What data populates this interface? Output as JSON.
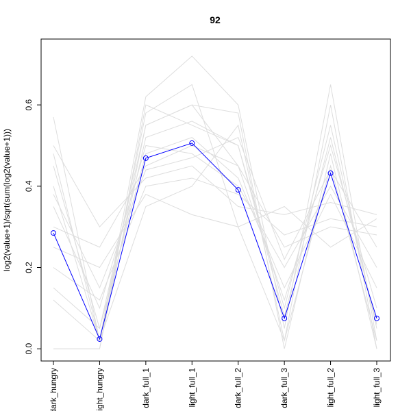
{
  "chart_data": {
    "type": "line",
    "title": "92",
    "ylabel": "log2(value+1)/sqrt(sum(log2(value+1)))",
    "categories": [
      "dark_hungry",
      "light_hungry",
      "dark_full_1",
      "light_full_1",
      "dark_full_2",
      "dark_full_3",
      "light_full_2",
      "light_full_3"
    ],
    "ylim": [
      -0.03,
      0.762
    ],
    "yticks": [
      {
        "value": 0,
        "label": "0.0"
      },
      {
        "value": 0.2,
        "label": "0.2"
      },
      {
        "value": 0.4,
        "label": "0.4"
      },
      {
        "value": 0.6,
        "label": "0.6"
      }
    ],
    "series": [
      {
        "color": "#dddddd",
        "values": [
          0.57,
          0.02,
          0.62,
          0.72,
          0.6,
          0.05,
          0.65,
          0.02
        ]
      },
      {
        "color": "#dddddd",
        "values": [
          0.5,
          0.3,
          0.42,
          0.45,
          0.35,
          0.33,
          0.36,
          0.33
        ]
      },
      {
        "color": "#dddddd",
        "values": [
          0.0,
          0.0,
          0.6,
          0.55,
          0.5,
          0.1,
          0.55,
          0.05
        ]
      },
      {
        "color": "#dddddd",
        "values": [
          0.45,
          0.05,
          0.55,
          0.6,
          0.45,
          0.12,
          0.5,
          0.1
        ]
      },
      {
        "color": "#dddddd",
        "values": [
          0.35,
          0.1,
          0.5,
          0.48,
          0.4,
          0.2,
          0.4,
          0.2
        ]
      },
      {
        "color": "#dddddd",
        "values": [
          0.2,
          0.12,
          0.4,
          0.42,
          0.38,
          0.28,
          0.32,
          0.3
        ]
      },
      {
        "color": "#dddddd",
        "values": [
          0.12,
          0.02,
          0.35,
          0.4,
          0.55,
          0.02,
          0.6,
          0.0
        ]
      },
      {
        "color": "#dddddd",
        "values": [
          0.4,
          0.02,
          0.58,
          0.65,
          0.3,
          0.02,
          0.45,
          0.02
        ]
      },
      {
        "color": "#dddddd",
        "values": [
          0.3,
          0.25,
          0.45,
          0.5,
          0.45,
          0.25,
          0.3,
          0.28
        ]
      },
      {
        "color": "#dddddd",
        "values": [
          0.25,
          0.2,
          0.38,
          0.33,
          0.3,
          0.35,
          0.25,
          0.32
        ]
      },
      {
        "color": "#dddddd",
        "values": [
          0.48,
          0.02,
          0.52,
          0.56,
          0.5,
          0.08,
          0.52,
          0.06
        ]
      },
      {
        "color": "#dddddd",
        "values": [
          0.15,
          0.05,
          0.48,
          0.52,
          0.42,
          0.15,
          0.38,
          0.15
        ]
      },
      {
        "color": "#dddddd",
        "values": [
          0.38,
          0.15,
          0.44,
          0.47,
          0.52,
          0.22,
          0.44,
          0.25
        ]
      },
      {
        "color": "#dddddd",
        "values": [
          0.0,
          0.0,
          0.55,
          0.6,
          0.58,
          0.0,
          0.48,
          0.0
        ]
      },
      {
        "color": "#0000ff",
        "values": [
          0.285,
          0.024,
          0.469,
          0.506,
          0.391,
          0.075,
          0.432,
          0.075
        ],
        "markers": true
      }
    ]
  }
}
